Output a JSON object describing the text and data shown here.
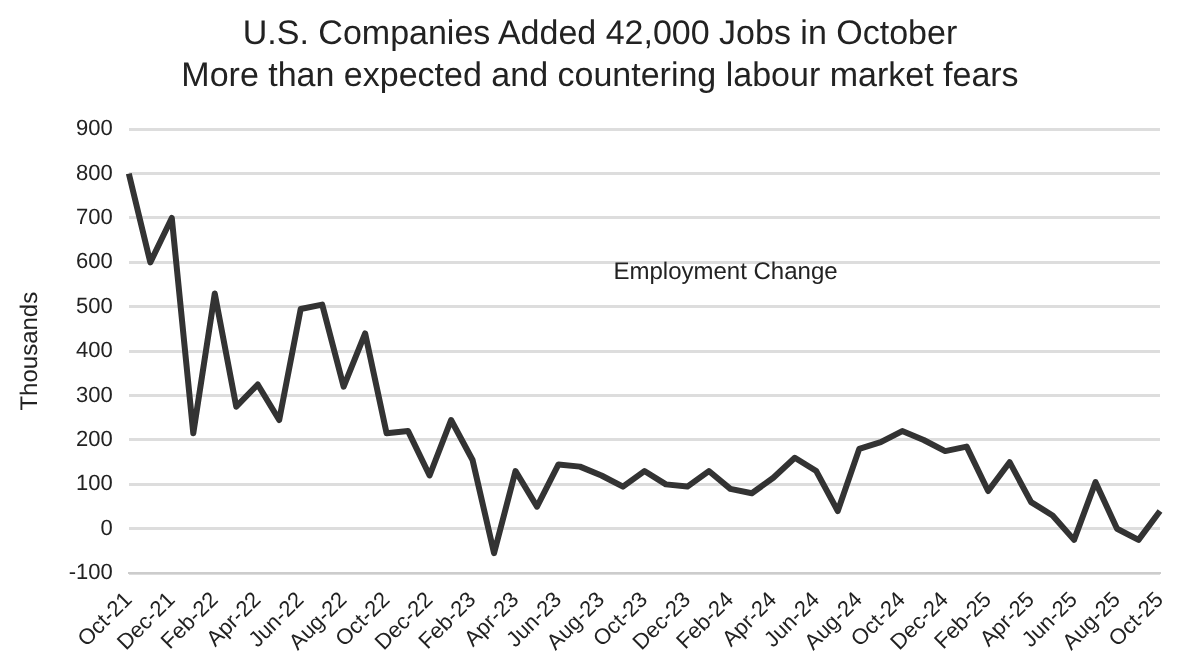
{
  "chart_data": {
    "type": "line",
    "title": "U.S. Companies Added 42,000 Jobs in October",
    "subtitle": "More than expected and countering labour market fears",
    "ylabel": "Thousands",
    "categories": [
      "Oct-21",
      null,
      "Dec-21",
      null,
      "Feb-22",
      null,
      "Apr-22",
      null,
      "Jun-22",
      null,
      "Aug-22",
      null,
      "Oct-22",
      null,
      "Dec-22",
      null,
      "Feb-23",
      null,
      "Apr-23",
      null,
      "Jun-23",
      null,
      "Aug-23",
      null,
      "Oct-23",
      null,
      "Dec-23",
      null,
      "Feb-24",
      null,
      "Apr-24",
      null,
      "Jun-24",
      null,
      "Aug-24",
      null,
      "Oct-24",
      null,
      "Dec-24",
      null,
      "Feb-25",
      null,
      "Apr-25",
      null,
      "Jun-25",
      null,
      "Aug-25",
      null,
      "Oct-25"
    ],
    "series": [
      {
        "name": "Employment Change",
        "color": "#333333",
        "values": [
          800,
          600,
          700,
          215,
          530,
          275,
          325,
          245,
          495,
          505,
          320,
          440,
          215,
          220,
          120,
          245,
          155,
          -55,
          130,
          50,
          145,
          140,
          120,
          95,
          130,
          100,
          95,
          130,
          90,
          80,
          115,
          160,
          130,
          40,
          180,
          195,
          220,
          200,
          175,
          185,
          85,
          150,
          60,
          30,
          -25,
          105,
          0,
          -25,
          40
        ]
      }
    ],
    "ylim": [
      -100,
      900
    ],
    "yticks": [
      -100,
      0,
      100,
      200,
      300,
      400,
      500,
      600,
      700,
      800,
      900
    ],
    "grid": "y",
    "legend": false,
    "marker": "none",
    "line_style": "solid"
  }
}
